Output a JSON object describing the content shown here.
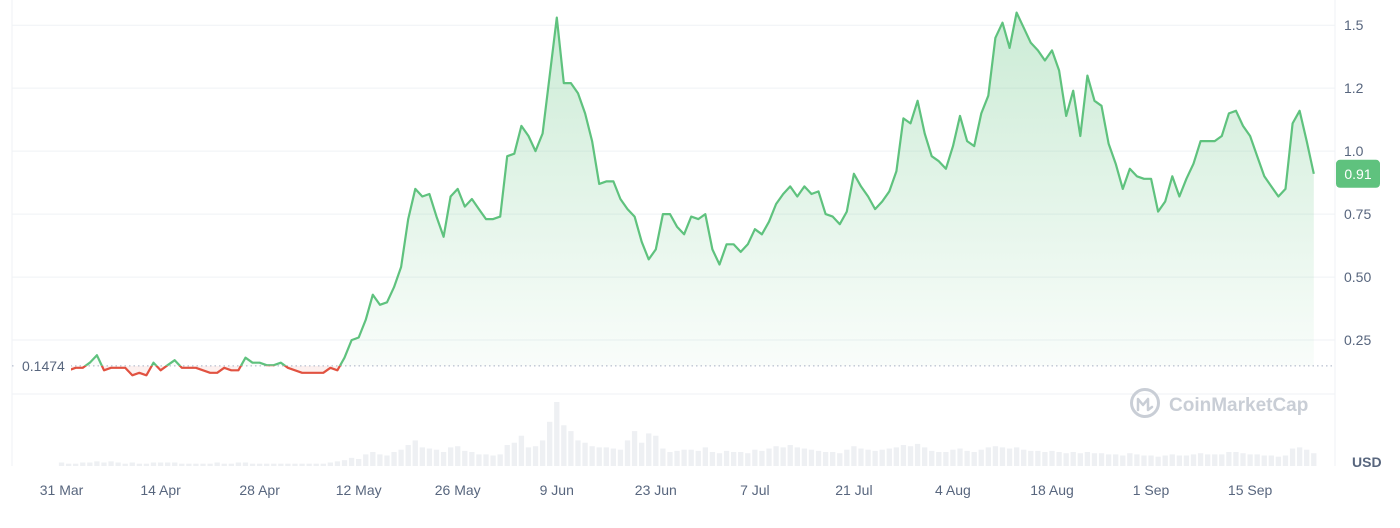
{
  "chart_data": {
    "type": "area",
    "currency": "USD",
    "watermark": "CoinMarketCap",
    "baseline_value": 0.1474,
    "baseline_label": "0.1474",
    "current_value": 0.91,
    "current_label": "0.91",
    "y_ticks": [
      {
        "value": 0.25,
        "label": "0.25"
      },
      {
        "value": 0.5,
        "label": "0.50"
      },
      {
        "value": 0.75,
        "label": "0.75"
      },
      {
        "value": 1.0,
        "label": "1.0"
      },
      {
        "value": 1.25,
        "label": "1.2"
      },
      {
        "value": 1.5,
        "label": "1.5"
      }
    ],
    "x_ticks": [
      "31 Mar",
      "14 Apr",
      "28 Apr",
      "12 May",
      "26 May",
      "9 Jun",
      "23 Jun",
      "7 Jul",
      "21 Jul",
      "4 Aug",
      "18 Aug",
      "1 Sep",
      "15 Sep"
    ],
    "ylim": [
      -0.25,
      1.6
    ],
    "xlim": [
      -7,
      180
    ],
    "colors": {
      "up": "#5fc27e",
      "down": "#e15241",
      "volume": "#eef0f3",
      "grid": "#eff2f5",
      "baseline": "#a6b0c3",
      "text": "#58667e"
    },
    "price": [
      [
        0,
        0.17
      ],
      [
        1,
        0.13
      ],
      [
        2,
        0.14
      ],
      [
        3,
        0.14
      ],
      [
        4,
        0.16
      ],
      [
        5,
        0.19
      ],
      [
        6,
        0.13
      ],
      [
        7,
        0.14
      ],
      [
        8,
        0.14
      ],
      [
        9,
        0.14
      ],
      [
        10,
        0.11
      ],
      [
        11,
        0.12
      ],
      [
        12,
        0.11
      ],
      [
        13,
        0.16
      ],
      [
        14,
        0.13
      ],
      [
        15,
        0.15
      ],
      [
        16,
        0.17
      ],
      [
        17,
        0.14
      ],
      [
        18,
        0.14
      ],
      [
        19,
        0.14
      ],
      [
        20,
        0.13
      ],
      [
        21,
        0.12
      ],
      [
        22,
        0.12
      ],
      [
        23,
        0.14
      ],
      [
        24,
        0.13
      ],
      [
        25,
        0.13
      ],
      [
        26,
        0.18
      ],
      [
        27,
        0.16
      ],
      [
        28,
        0.16
      ],
      [
        29,
        0.15
      ],
      [
        30,
        0.15
      ],
      [
        31,
        0.16
      ],
      [
        32,
        0.14
      ],
      [
        33,
        0.13
      ],
      [
        34,
        0.12
      ],
      [
        35,
        0.12
      ],
      [
        36,
        0.12
      ],
      [
        37,
        0.12
      ],
      [
        38,
        0.14
      ],
      [
        39,
        0.13
      ],
      [
        40,
        0.18
      ],
      [
        41,
        0.25
      ],
      [
        42,
        0.26
      ],
      [
        43,
        0.33
      ],
      [
        44,
        0.43
      ],
      [
        45,
        0.39
      ],
      [
        46,
        0.4
      ],
      [
        47,
        0.46
      ],
      [
        48,
        0.54
      ],
      [
        49,
        0.73
      ],
      [
        50,
        0.85
      ],
      [
        51,
        0.82
      ],
      [
        52,
        0.83
      ],
      [
        53,
        0.74
      ],
      [
        54,
        0.66
      ],
      [
        55,
        0.82
      ],
      [
        56,
        0.85
      ],
      [
        57,
        0.78
      ],
      [
        58,
        0.81
      ],
      [
        59,
        0.77
      ],
      [
        60,
        0.73
      ],
      [
        61,
        0.73
      ],
      [
        62,
        0.74
      ],
      [
        63,
        0.98
      ],
      [
        64,
        0.99
      ],
      [
        65,
        1.1
      ],
      [
        66,
        1.06
      ],
      [
        67,
        1.0
      ],
      [
        68,
        1.07
      ],
      [
        69,
        1.3
      ],
      [
        70,
        1.53
      ],
      [
        71,
        1.27
      ],
      [
        72,
        1.27
      ],
      [
        73,
        1.23
      ],
      [
        74,
        1.15
      ],
      [
        75,
        1.04
      ],
      [
        76,
        0.87
      ],
      [
        77,
        0.88
      ],
      [
        78,
        0.88
      ],
      [
        79,
        0.81
      ],
      [
        80,
        0.77
      ],
      [
        81,
        0.74
      ],
      [
        82,
        0.64
      ],
      [
        83,
        0.57
      ],
      [
        84,
        0.61
      ],
      [
        85,
        0.75
      ],
      [
        86,
        0.75
      ],
      [
        87,
        0.7
      ],
      [
        88,
        0.67
      ],
      [
        89,
        0.74
      ],
      [
        90,
        0.73
      ],
      [
        91,
        0.75
      ],
      [
        92,
        0.61
      ],
      [
        93,
        0.55
      ],
      [
        94,
        0.63
      ],
      [
        95,
        0.63
      ],
      [
        96,
        0.6
      ],
      [
        97,
        0.63
      ],
      [
        98,
        0.69
      ],
      [
        99,
        0.67
      ],
      [
        100,
        0.72
      ],
      [
        101,
        0.79
      ],
      [
        102,
        0.83
      ],
      [
        103,
        0.86
      ],
      [
        104,
        0.82
      ],
      [
        105,
        0.86
      ],
      [
        106,
        0.83
      ],
      [
        107,
        0.84
      ],
      [
        108,
        0.75
      ],
      [
        109,
        0.74
      ],
      [
        110,
        0.71
      ],
      [
        111,
        0.76
      ],
      [
        112,
        0.91
      ],
      [
        113,
        0.86
      ],
      [
        114,
        0.82
      ],
      [
        115,
        0.77
      ],
      [
        116,
        0.8
      ],
      [
        117,
        0.84
      ],
      [
        118,
        0.92
      ],
      [
        119,
        1.13
      ],
      [
        120,
        1.11
      ],
      [
        121,
        1.2
      ],
      [
        122,
        1.07
      ],
      [
        123,
        0.98
      ],
      [
        124,
        0.96
      ],
      [
        125,
        0.93
      ],
      [
        126,
        1.02
      ],
      [
        127,
        1.14
      ],
      [
        128,
        1.04
      ],
      [
        129,
        1.02
      ],
      [
        130,
        1.15
      ],
      [
        131,
        1.22
      ],
      [
        132,
        1.45
      ],
      [
        133,
        1.51
      ],
      [
        134,
        1.41
      ],
      [
        135,
        1.55
      ],
      [
        136,
        1.49
      ],
      [
        137,
        1.43
      ],
      [
        138,
        1.4
      ],
      [
        139,
        1.36
      ],
      [
        140,
        1.4
      ],
      [
        141,
        1.32
      ],
      [
        142,
        1.14
      ],
      [
        143,
        1.24
      ],
      [
        144,
        1.06
      ],
      [
        145,
        1.3
      ],
      [
        146,
        1.2
      ],
      [
        147,
        1.18
      ],
      [
        148,
        1.03
      ],
      [
        149,
        0.95
      ],
      [
        150,
        0.85
      ],
      [
        151,
        0.93
      ],
      [
        152,
        0.9
      ],
      [
        153,
        0.89
      ],
      [
        154,
        0.89
      ],
      [
        155,
        0.76
      ],
      [
        156,
        0.8
      ],
      [
        157,
        0.9
      ],
      [
        158,
        0.82
      ],
      [
        159,
        0.89
      ],
      [
        160,
        0.95
      ],
      [
        161,
        1.04
      ],
      [
        162,
        1.04
      ],
      [
        163,
        1.04
      ],
      [
        164,
        1.06
      ],
      [
        165,
        1.15
      ],
      [
        166,
        1.16
      ],
      [
        167,
        1.1
      ],
      [
        168,
        1.06
      ],
      [
        169,
        0.98
      ],
      [
        170,
        0.9
      ],
      [
        171,
        0.86
      ],
      [
        172,
        0.82
      ],
      [
        173,
        0.85
      ],
      [
        174,
        1.11
      ],
      [
        175,
        1.16
      ],
      [
        176,
        1.04
      ],
      [
        177,
        0.91
      ]
    ],
    "volume": [
      3,
      2,
      2,
      3,
      3,
      4,
      3,
      4,
      3,
      2,
      3,
      2,
      2,
      3,
      3,
      3,
      3,
      2,
      2,
      2,
      2,
      2,
      3,
      2,
      2,
      3,
      3,
      2,
      2,
      2,
      2,
      2,
      2,
      2,
      2,
      2,
      2,
      2,
      3,
      4,
      5,
      7,
      6,
      10,
      12,
      10,
      9,
      12,
      14,
      18,
      22,
      16,
      15,
      14,
      12,
      16,
      17,
      13,
      12,
      10,
      10,
      9,
      10,
      18,
      20,
      26,
      16,
      17,
      22,
      38,
      55,
      35,
      30,
      22,
      20,
      17,
      16,
      16,
      15,
      14,
      22,
      30,
      20,
      28,
      26,
      15,
      12,
      13,
      14,
      14,
      13,
      16,
      12,
      11,
      13,
      12,
      12,
      11,
      14,
      13,
      15,
      17,
      16,
      18,
      16,
      15,
      14,
      13,
      12,
      12,
      11,
      14,
      17,
      15,
      14,
      13,
      14,
      15,
      16,
      18,
      17,
      19,
      16,
      13,
      12,
      12,
      14,
      15,
      13,
      12,
      14,
      16,
      17,
      16,
      15,
      16,
      14,
      13,
      13,
      12,
      13,
      12,
      11,
      12,
      11,
      12,
      11,
      11,
      10,
      10,
      9,
      11,
      10,
      9,
      9,
      8,
      9,
      10,
      9,
      9,
      10,
      11,
      10,
      10,
      10,
      12,
      12,
      11,
      10,
      10,
      9,
      9,
      8,
      9,
      15,
      16,
      14,
      11
    ]
  }
}
